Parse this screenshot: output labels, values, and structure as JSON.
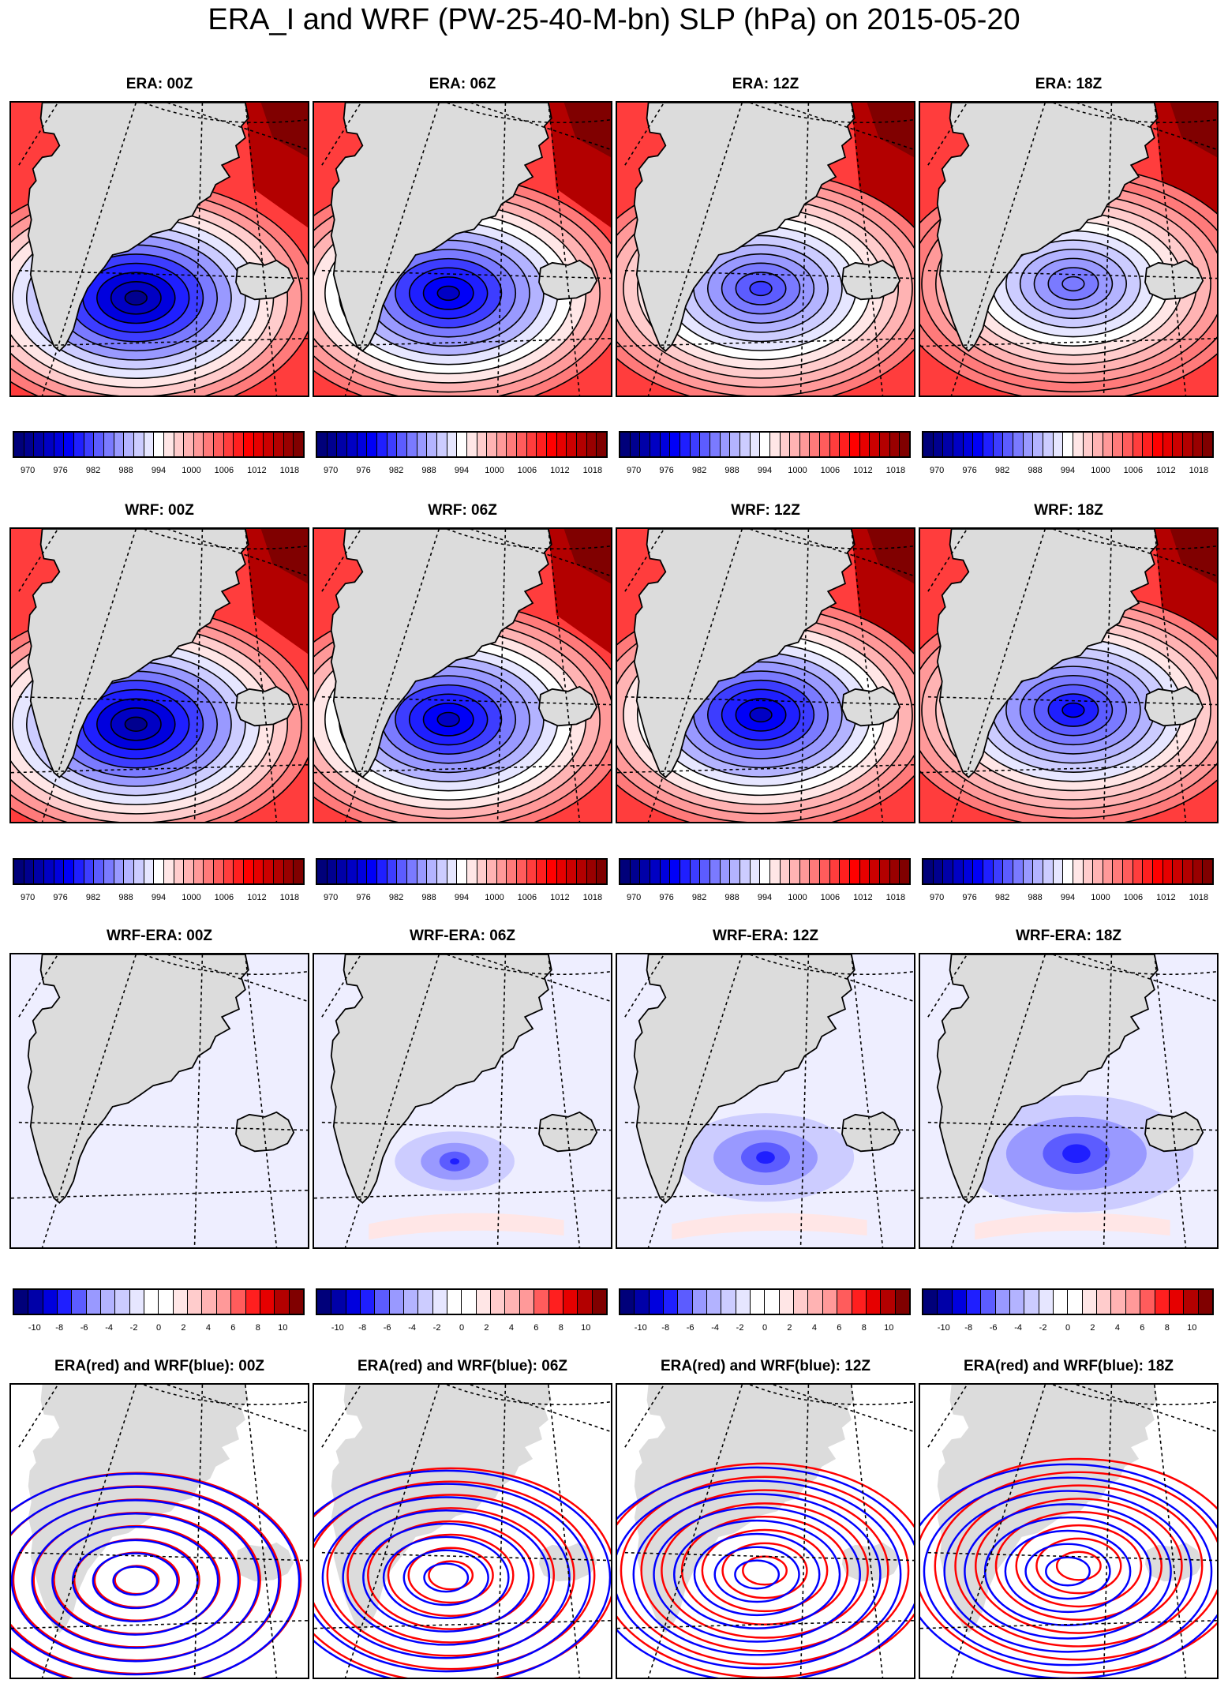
{
  "title": "ERA_I and WRF (PW-25-40-M-bn) SLP (hPa) on 2015-05-20",
  "rows": [
    {
      "kind": "field",
      "titles": [
        "ERA: 00Z",
        "ERA: 06Z",
        "ERA: 12Z",
        "ERA: 18Z"
      ]
    },
    {
      "kind": "field",
      "titles": [
        "WRF: 00Z",
        "WRF: 06Z",
        "WRF: 12Z",
        "WRF: 18Z"
      ]
    },
    {
      "kind": "diff",
      "titles": [
        "WRF-ERA: 00Z",
        "WRF-ERA: 06Z",
        "WRF-ERA: 12Z",
        "WRF-ERA: 18Z"
      ]
    },
    {
      "kind": "overlay",
      "titles": [
        "ERA(red) and WRF(blue): 00Z",
        "ERA(red) and WRF(blue): 06Z",
        "ERA(red) and WRF(blue): 12Z",
        "ERA(red) and WRF(blue): 18Z"
      ]
    }
  ],
  "colorbars": {
    "slp": {
      "labels": [
        "970",
        "976",
        "982",
        "988",
        "994",
        "1000",
        "1006",
        "1012",
        "1018"
      ],
      "colors": [
        "#00007a",
        "#00008f",
        "#0000a8",
        "#0000c4",
        "#0000de",
        "#0000f7",
        "#1f1fff",
        "#3d3dff",
        "#5c5cff",
        "#7a7aff",
        "#9999ff",
        "#b3b3ff",
        "#ccccff",
        "#e6e6ff",
        "#ffffff",
        "#ffe6e6",
        "#ffcccc",
        "#ffb3b3",
        "#ff9999",
        "#ff7a7a",
        "#ff5c5c",
        "#ff3d3d",
        "#ff1f1f",
        "#ff0000",
        "#e60000",
        "#cc0000",
        "#b30000",
        "#990000",
        "#800000"
      ]
    },
    "diff": {
      "labels": [
        "-10",
        "-8",
        "-6",
        "-4",
        "-2",
        "0",
        "2",
        "4",
        "6",
        "8",
        "10"
      ],
      "colors": [
        "#00007a",
        "#0000a8",
        "#0000de",
        "#1f1fff",
        "#5c5cff",
        "#9999ff",
        "#b3b3ff",
        "#ccccff",
        "#e6e6ff",
        "#ffffff",
        "#ffffff",
        "#ffe6e6",
        "#ffcccc",
        "#ffb3b3",
        "#ff9999",
        "#ff5c5c",
        "#ff1f1f",
        "#e60000",
        "#b30000",
        "#800000"
      ]
    }
  },
  "lows": [
    {
      "era_center_hpa": 972,
      "wrf_center_hpa": 972
    },
    {
      "era_center_hpa": 976,
      "wrf_center_hpa": 976
    },
    {
      "era_center_hpa": 982,
      "wrf_center_hpa": 976
    },
    {
      "era_center_hpa": 985,
      "wrf_center_hpa": 979
    }
  ],
  "icons": {
    "land": "greenland-coast",
    "island": "iceland-coast",
    "graticule": "dashed-meridians"
  },
  "colors": {
    "land": "#dcdcdc",
    "era_contour": "#ff0000",
    "wrf_contour": "#0000ff"
  }
}
